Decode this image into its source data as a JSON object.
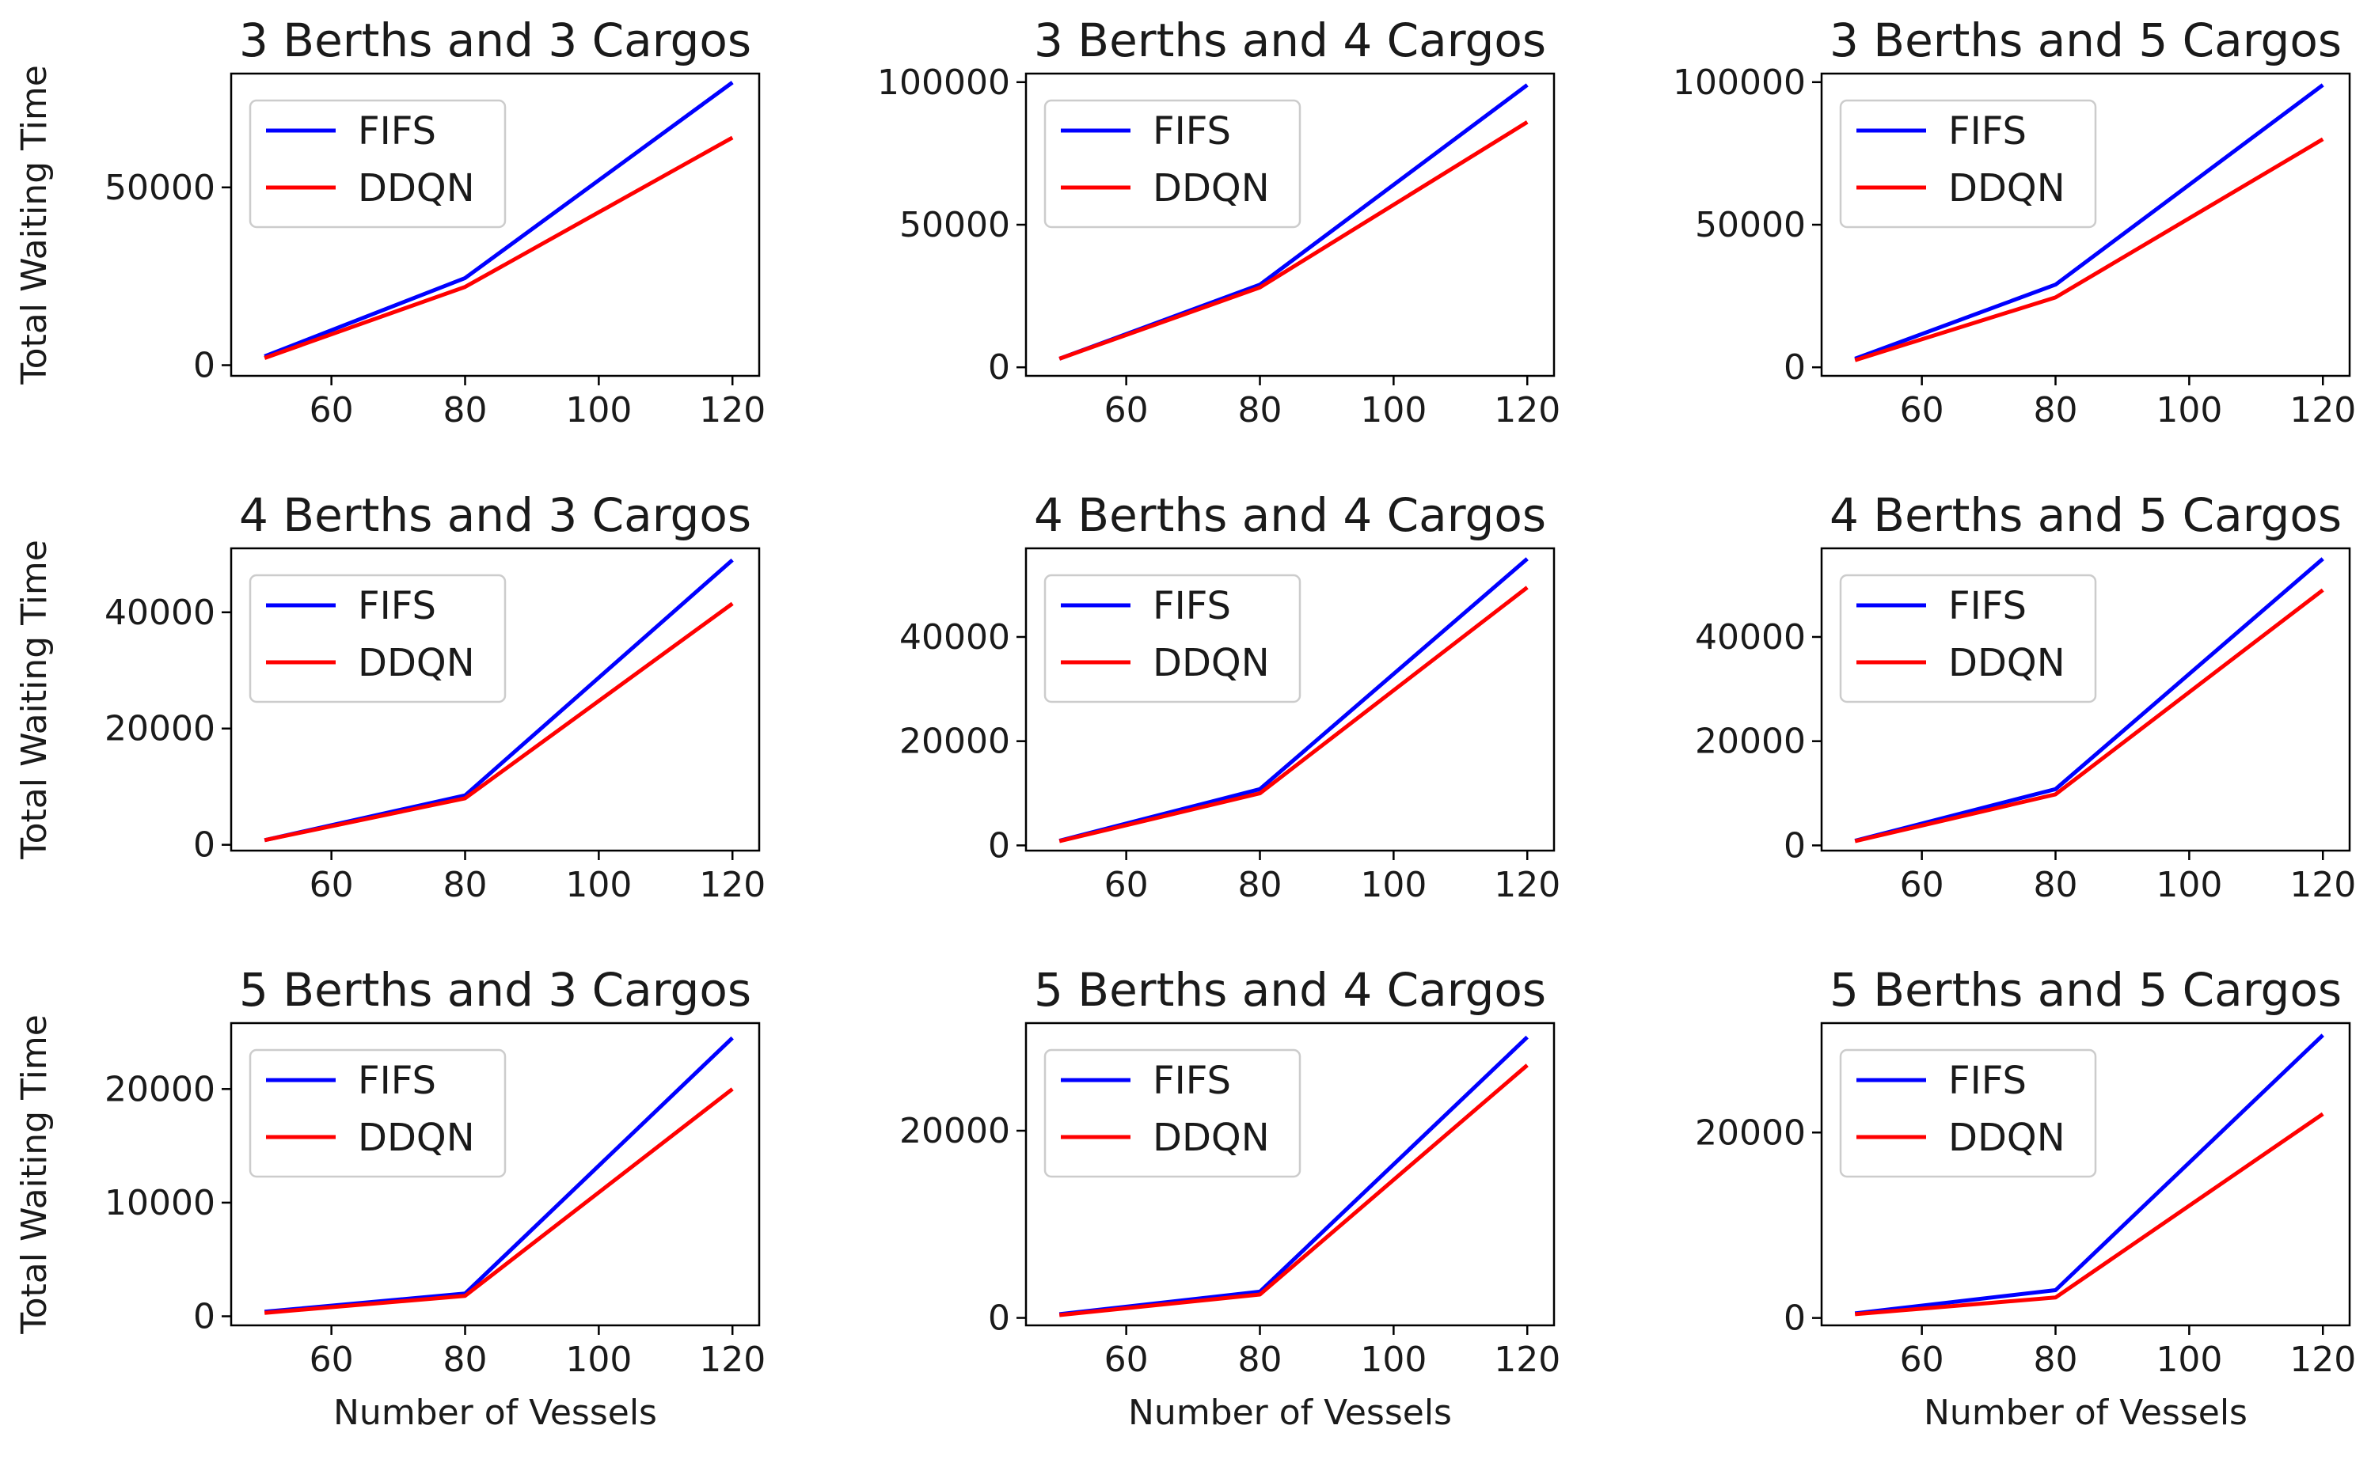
{
  "chart_data": [
    {
      "type": "line",
      "title": "3 Berths and 3 Cargos",
      "xlabel": "",
      "ylabel": "Total Waiting Time",
      "x": [
        50,
        80,
        120
      ],
      "xticks": [
        60,
        80,
        100,
        120
      ],
      "xlim": [
        45,
        124
      ],
      "ylim": [
        -3000,
        82000
      ],
      "yticks": [
        0,
        50000
      ],
      "ytick_labels": [
        "0",
        "50000"
      ],
      "series": [
        {
          "name": "FIFS",
          "color": "#0000ff",
          "values": [
            2500,
            24500,
            79500
          ]
        },
        {
          "name": "DDQN",
          "color": "#ff0000",
          "values": [
            2000,
            22000,
            64000
          ]
        }
      ]
    },
    {
      "type": "line",
      "title": "3 Berths and 4 Cargos",
      "xlabel": "",
      "ylabel": "",
      "x": [
        50,
        80,
        120
      ],
      "xticks": [
        60,
        80,
        100,
        120
      ],
      "xlim": [
        45,
        124
      ],
      "ylim": [
        -3000,
        103000
      ],
      "yticks": [
        0,
        50000,
        100000
      ],
      "ytick_labels": [
        "0",
        "50000",
        "100000"
      ],
      "series": [
        {
          "name": "FIFS",
          "color": "#0000ff",
          "values": [
            3000,
            29000,
            99000
          ]
        },
        {
          "name": "DDQN",
          "color": "#ff0000",
          "values": [
            3000,
            28000,
            86000
          ]
        }
      ]
    },
    {
      "type": "line",
      "title": "3 Berths and 5 Cargos",
      "xlabel": "",
      "ylabel": "",
      "x": [
        50,
        80,
        120
      ],
      "xticks": [
        60,
        80,
        100,
        120
      ],
      "xlim": [
        45,
        124
      ],
      "ylim": [
        -3000,
        103000
      ],
      "yticks": [
        0,
        50000,
        100000
      ],
      "ytick_labels": [
        "0",
        "50000",
        "100000"
      ],
      "series": [
        {
          "name": "FIFS",
          "color": "#0000ff",
          "values": [
            3000,
            29000,
            99000
          ]
        },
        {
          "name": "DDQN",
          "color": "#ff0000",
          "values": [
            2500,
            24500,
            80000
          ]
        }
      ]
    },
    {
      "type": "line",
      "title": "4 Berths and 3 Cargos",
      "xlabel": "",
      "ylabel": "Total Waiting Time",
      "x": [
        50,
        80,
        120
      ],
      "xticks": [
        60,
        80,
        100,
        120
      ],
      "xlim": [
        45,
        124
      ],
      "ylim": [
        -1000,
        51000
      ],
      "yticks": [
        0,
        20000,
        40000
      ],
      "ytick_labels": [
        "0",
        "20000",
        "40000"
      ],
      "series": [
        {
          "name": "FIFS",
          "color": "#0000ff",
          "values": [
            800,
            8500,
            49000
          ]
        },
        {
          "name": "DDQN",
          "color": "#ff0000",
          "values": [
            800,
            8000,
            41500
          ]
        }
      ]
    },
    {
      "type": "line",
      "title": "4 Berths and 4 Cargos",
      "xlabel": "",
      "ylabel": "",
      "x": [
        50,
        80,
        120
      ],
      "xticks": [
        60,
        80,
        100,
        120
      ],
      "xlim": [
        45,
        124
      ],
      "ylim": [
        -1000,
        57000
      ],
      "yticks": [
        0,
        20000,
        40000
      ],
      "ytick_labels": [
        "0",
        "20000",
        "40000"
      ],
      "series": [
        {
          "name": "FIFS",
          "color": "#0000ff",
          "values": [
            900,
            10800,
            55000
          ]
        },
        {
          "name": "DDQN",
          "color": "#ff0000",
          "values": [
            800,
            10000,
            49500
          ]
        }
      ]
    },
    {
      "type": "line",
      "title": "4 Berths and 5 Cargos",
      "xlabel": "",
      "ylabel": "",
      "x": [
        50,
        80,
        120
      ],
      "xticks": [
        60,
        80,
        100,
        120
      ],
      "xlim": [
        45,
        124
      ],
      "ylim": [
        -1000,
        57000
      ],
      "yticks": [
        0,
        20000,
        40000
      ],
      "ytick_labels": [
        "0",
        "20000",
        "40000"
      ],
      "series": [
        {
          "name": "FIFS",
          "color": "#0000ff",
          "values": [
            900,
            10800,
            55000
          ]
        },
        {
          "name": "DDQN",
          "color": "#ff0000",
          "values": [
            800,
            9800,
            49000
          ]
        }
      ]
    },
    {
      "type": "line",
      "title": "5 Berths and 3 Cargos",
      "xlabel": "Number of Vessels",
      "ylabel": "Total Waiting Time",
      "x": [
        50,
        80,
        120
      ],
      "xticks": [
        60,
        80,
        100,
        120
      ],
      "xlim": [
        45,
        124
      ],
      "ylim": [
        -800,
        25800
      ],
      "yticks": [
        0,
        10000,
        20000
      ],
      "ytick_labels": [
        "0",
        "10000",
        "20000"
      ],
      "series": [
        {
          "name": "FIFS",
          "color": "#0000ff",
          "values": [
            400,
            2000,
            24500
          ]
        },
        {
          "name": "DDQN",
          "color": "#ff0000",
          "values": [
            300,
            1800,
            20000
          ]
        }
      ]
    },
    {
      "type": "line",
      "title": "5 Berths and 4 Cargos",
      "xlabel": "Number of Vessels",
      "ylabel": "",
      "x": [
        50,
        80,
        120
      ],
      "xticks": [
        60,
        80,
        100,
        120
      ],
      "xlim": [
        45,
        124
      ],
      "ylim": [
        -800,
        31500
      ],
      "yticks": [
        0,
        20000
      ],
      "ytick_labels": [
        "0",
        "20000"
      ],
      "series": [
        {
          "name": "FIFS",
          "color": "#0000ff",
          "values": [
            400,
            2800,
            30000
          ]
        },
        {
          "name": "DDQN",
          "color": "#ff0000",
          "values": [
            300,
            2500,
            27000
          ]
        }
      ]
    },
    {
      "type": "line",
      "title": "5 Berths and 5 Cargos",
      "xlabel": "Number of Vessels",
      "ylabel": "",
      "x": [
        50,
        80,
        120
      ],
      "xticks": [
        60,
        80,
        100,
        120
      ],
      "xlim": [
        45,
        124
      ],
      "ylim": [
        -800,
        31800
      ],
      "yticks": [
        0,
        20000
      ],
      "ytick_labels": [
        "0",
        "20000"
      ],
      "series": [
        {
          "name": "FIFS",
          "color": "#0000ff",
          "values": [
            500,
            3000,
            30500
          ]
        },
        {
          "name": "DDQN",
          "color": "#ff0000",
          "values": [
            400,
            2200,
            22000
          ]
        }
      ]
    }
  ]
}
